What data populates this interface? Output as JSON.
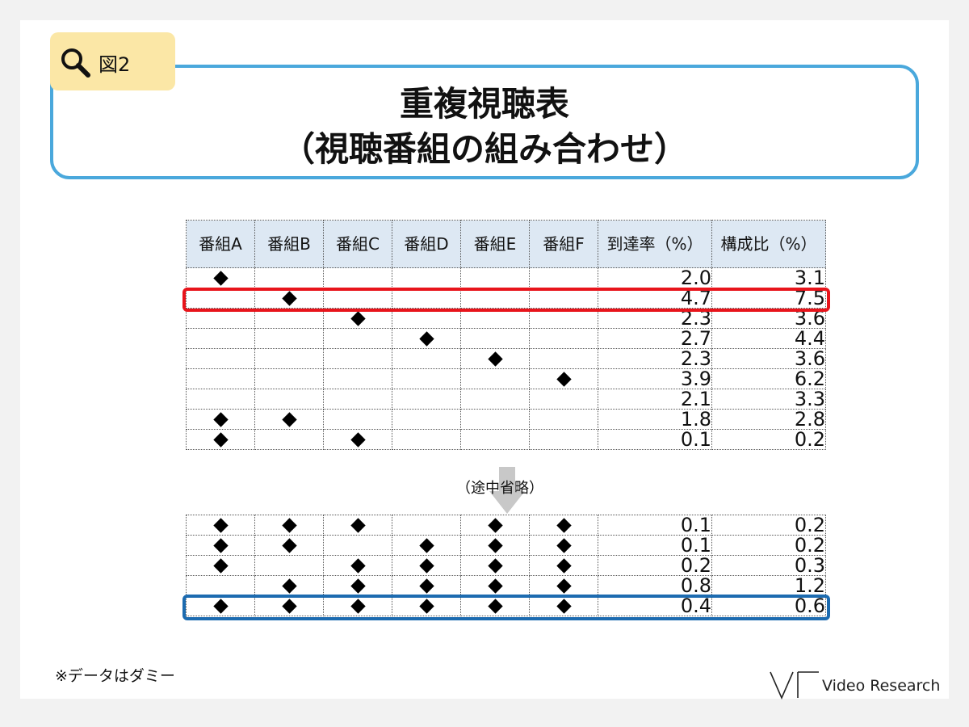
{
  "figure_tag": "図2",
  "title": {
    "line1": "重複視聴表",
    "line2": "（視聴番組の組み合わせ）"
  },
  "table": {
    "headers": [
      "番組A",
      "番組B",
      "番組C",
      "番組D",
      "番組E",
      "番組F",
      "到達率（%）",
      "構成比（%）"
    ],
    "top_rows": [
      {
        "marks": [
          1,
          0,
          0,
          0,
          0,
          0
        ],
        "reach": "2.0",
        "share": "3.1"
      },
      {
        "marks": [
          0,
          1,
          0,
          0,
          0,
          0
        ],
        "reach": "4.7",
        "share": "7.5"
      },
      {
        "marks": [
          0,
          0,
          1,
          0,
          0,
          0
        ],
        "reach": "2.3",
        "share": "3.6"
      },
      {
        "marks": [
          0,
          0,
          0,
          1,
          0,
          0
        ],
        "reach": "2.7",
        "share": "4.4"
      },
      {
        "marks": [
          0,
          0,
          0,
          0,
          1,
          0
        ],
        "reach": "2.3",
        "share": "3.6"
      },
      {
        "marks": [
          0,
          0,
          0,
          0,
          0,
          1
        ],
        "reach": "3.9",
        "share": "6.2"
      },
      {
        "marks": [
          0,
          0,
          0,
          0,
          0,
          0
        ],
        "reach": "2.1",
        "share": "3.3"
      },
      {
        "marks": [
          1,
          1,
          0,
          0,
          0,
          0
        ],
        "reach": "1.8",
        "share": "2.8"
      },
      {
        "marks": [
          1,
          0,
          1,
          0,
          0,
          0
        ],
        "reach": "0.1",
        "share": "0.2"
      }
    ],
    "omission_label": "（途中省略）",
    "bottom_rows": [
      {
        "marks": [
          1,
          1,
          1,
          0,
          1,
          1
        ],
        "reach": "0.1",
        "share": "0.2"
      },
      {
        "marks": [
          1,
          1,
          0,
          1,
          1,
          1
        ],
        "reach": "0.1",
        "share": "0.2"
      },
      {
        "marks": [
          1,
          0,
          1,
          1,
          1,
          1
        ],
        "reach": "0.2",
        "share": "0.3"
      },
      {
        "marks": [
          0,
          1,
          1,
          1,
          1,
          1
        ],
        "reach": "0.8",
        "share": "1.2"
      },
      {
        "marks": [
          1,
          1,
          1,
          1,
          1,
          1
        ],
        "reach": "0.4",
        "share": "0.6"
      }
    ],
    "highlights": [
      {
        "section": "top",
        "row_index": 1,
        "color": "#e8141b"
      },
      {
        "section": "bottom",
        "row_index": 4,
        "color": "#1c6bb0"
      }
    ]
  },
  "footnote": "※データはダミー",
  "brand": "Video Research",
  "icons": {
    "figure_tag": "magnifier-icon",
    "omission": "arrow-down-icon",
    "brand": "video-research-logo"
  },
  "colors": {
    "tag_bg": "#fbe7a6",
    "title_border": "#4aa8dc",
    "header_bg": "#dde8f3",
    "mark": "#000000"
  }
}
